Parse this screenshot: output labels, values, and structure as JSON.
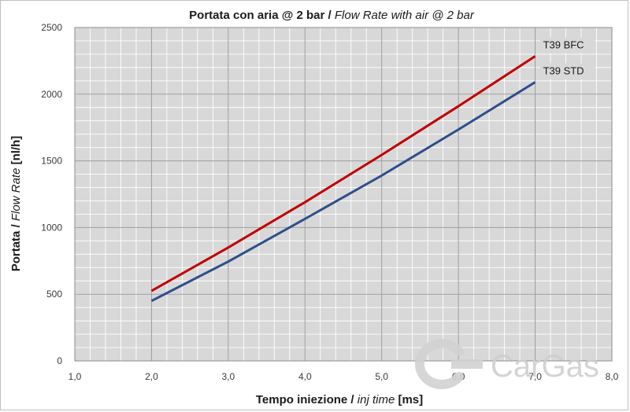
{
  "chart_data": {
    "type": "line",
    "title": "Portata con aria @ 2 bar / Flow Rate with air @ 2 bar",
    "title_parts": {
      "main": "Portata con aria @ 2 bar",
      "sep": " / ",
      "italic": "Flow Rate with air @ 2 bar"
    },
    "xlabel": "Tempo iniezione / inj time [ms]",
    "xlabel_parts": {
      "main": "Tempo iniezione",
      "sep": " / ",
      "italic": "inj time",
      "unit": " [ms]"
    },
    "ylabel": "Portata / Flow Rate [nl/h]",
    "ylabel_parts": {
      "main": "Portata",
      "sep": " / ",
      "italic": "Flow Rate",
      "unit": " [nl/h]"
    },
    "xlim": [
      1.0,
      8.0
    ],
    "ylim": [
      0,
      2500
    ],
    "x_ticks": [
      "1,0",
      "2,0",
      "3,0",
      "4,0",
      "5,0",
      "6,0",
      "7,0",
      "8,0"
    ],
    "y_ticks": [
      "0",
      "500",
      "1000",
      "1500",
      "2000",
      "2500"
    ],
    "grid": true,
    "series": [
      {
        "name": "T39 BFC",
        "color": "#c00000",
        "x": [
          2.0,
          3.0,
          4.0,
          5.0,
          6.0,
          7.0
        ],
        "y": [
          525,
          850,
          1190,
          1545,
          1910,
          2285
        ]
      },
      {
        "name": "T39 STD",
        "color": "#2e4d8a",
        "x": [
          2.0,
          3.0,
          4.0,
          5.0,
          6.0,
          7.0
        ],
        "y": [
          450,
          745,
          1065,
          1390,
          1735,
          2090
        ]
      }
    ]
  },
  "watermark": {
    "text": "CarGas"
  }
}
